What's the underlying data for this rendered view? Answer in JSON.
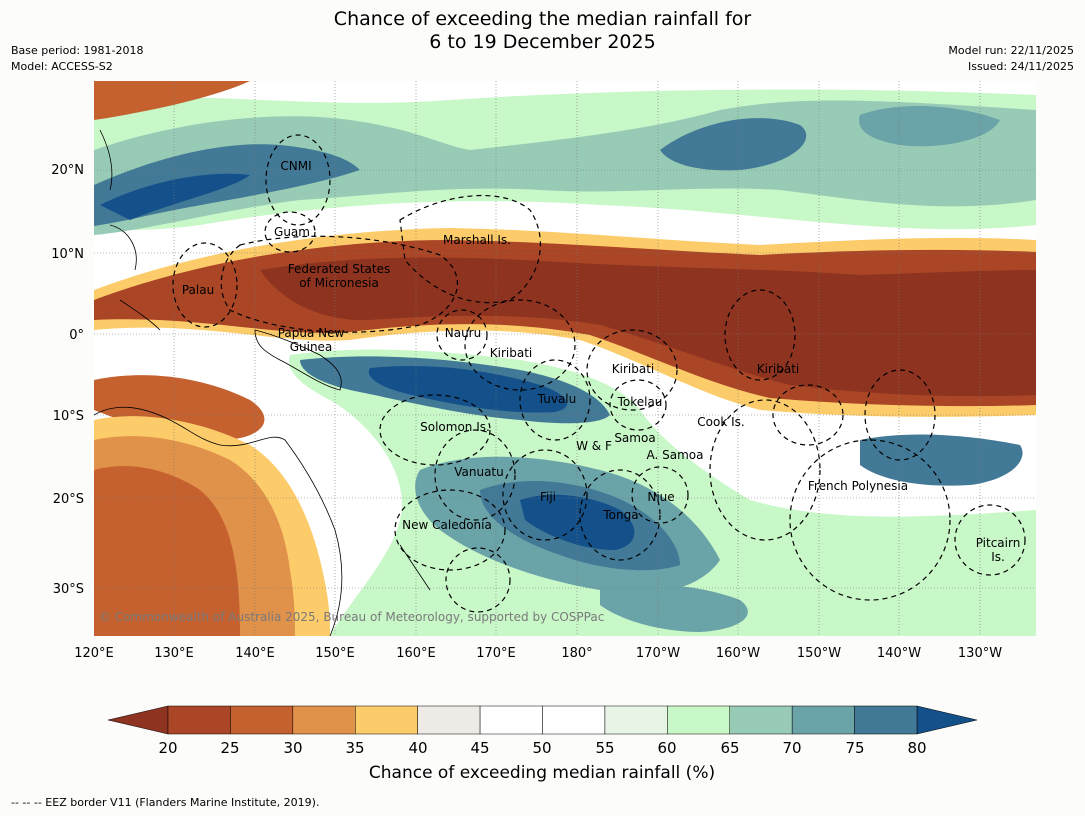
{
  "title": {
    "line1": "Chance of exceeding the median rainfall for",
    "line2": "6 to 19 December 2025"
  },
  "meta": {
    "base_period": "Base period: 1981-2018",
    "model": "Model: ACCESS-S2",
    "model_run": "Model run: 22/11/2025",
    "issued": "Issued: 24/11/2025"
  },
  "copyright": "© Commonwealth of Australia 2025, Bureau of Meteorology, supported by COSPPac",
  "axes": {
    "lon_ticks": [
      "120°E",
      "130°E",
      "140°E",
      "150°E",
      "160°E",
      "170°E",
      "180°",
      "170°W",
      "160°W",
      "150°W",
      "140°W",
      "130°W"
    ],
    "lat_ticks": [
      "20°N",
      "10°N",
      "0°",
      "10°S",
      "20°S",
      "30°S"
    ]
  },
  "regions": [
    {
      "id": "cnmi",
      "name": "CNMI"
    },
    {
      "id": "guam",
      "name": "Guam"
    },
    {
      "id": "marshall",
      "name": "Marshall Is."
    },
    {
      "id": "fsm1",
      "name": "Federated States"
    },
    {
      "id": "fsm2",
      "name": "of Micronesia"
    },
    {
      "id": "palau",
      "name": "Palau"
    },
    {
      "id": "png1",
      "name": "Papua New"
    },
    {
      "id": "png2",
      "name": "Guinea"
    },
    {
      "id": "nauru",
      "name": "Nauru"
    },
    {
      "id": "kiribati-w",
      "name": "Kiribati"
    },
    {
      "id": "kiribati-c",
      "name": "Kiribati"
    },
    {
      "id": "kiribati-e",
      "name": "Kiribati"
    },
    {
      "id": "tuvalu",
      "name": "Tuvalu"
    },
    {
      "id": "tokelau",
      "name": "Tokelau"
    },
    {
      "id": "cook",
      "name": "Cook Is."
    },
    {
      "id": "solomon",
      "name": "Solomon Is."
    },
    {
      "id": "wf",
      "name": "W & F"
    },
    {
      "id": "samoa",
      "name": "Samoa"
    },
    {
      "id": "asamoa",
      "name": "A. Samoa"
    },
    {
      "id": "vanuatu",
      "name": "Vanuatu"
    },
    {
      "id": "fiji",
      "name": "Fiji"
    },
    {
      "id": "niue",
      "name": "Niue"
    },
    {
      "id": "frenchpoly",
      "name": "French Polynesia"
    },
    {
      "id": "tonga",
      "name": "Tonga"
    },
    {
      "id": "newcal",
      "name": "New Caledonia"
    },
    {
      "id": "pitcairn1",
      "name": "Pitcairn"
    },
    {
      "id": "pitcairn2",
      "name": "Is."
    }
  ],
  "colorbar": {
    "title": "Chance of exceeding median rainfall (%)",
    "ticks": [
      "20",
      "25",
      "30",
      "35",
      "40",
      "45",
      "50",
      "55",
      "60",
      "65",
      "70",
      "75",
      "80"
    ],
    "under_color": "#8e3320",
    "over_color": "#14508a",
    "colors": [
      "#aa4626",
      "#c5612f",
      "#e0914a",
      "#fdcc6a",
      "#eeebe6",
      "#ffffff",
      "#ffffff",
      "#e8f5e6",
      "#c8f7c8",
      "#98cbb6",
      "#6aa3a8",
      "#427996"
    ]
  },
  "palette": {
    "land_line": "#000000",
    "eez": "#000000",
    "grid": "#777777"
  },
  "footer": "-- -- -- EEZ border V11 (Flanders Marine Institute, 2019)."
}
